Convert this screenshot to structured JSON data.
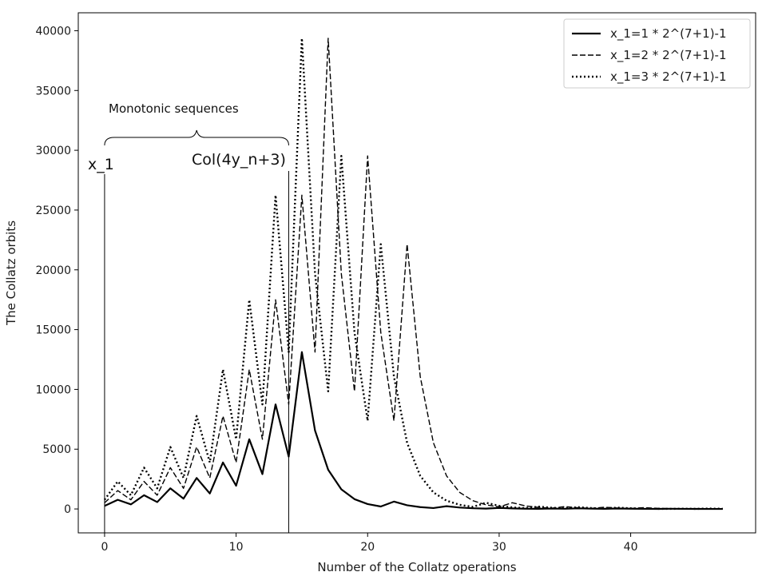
{
  "chart_data": {
    "type": "line",
    "title": "",
    "xlabel": "Number of the Collatz operations",
    "ylabel": "The Collatz orbits",
    "xlim": [
      -2,
      49.5
    ],
    "ylim": [
      -2000,
      41500
    ],
    "xticks": [
      0,
      10,
      20,
      30,
      40
    ],
    "yticks": [
      0,
      5000,
      10000,
      15000,
      20000,
      25000,
      30000,
      35000,
      40000
    ],
    "grid": false,
    "legend_position": "top-right",
    "series": [
      {
        "name": "x_1=1 * 2^(7+1)-1",
        "style": "solid",
        "color": "#000000",
        "x": [
          0,
          1,
          2,
          3,
          4,
          5,
          6,
          7,
          8,
          9,
          10,
          11,
          12,
          13,
          14,
          15,
          16,
          17,
          18,
          19,
          20,
          21,
          22,
          23,
          24,
          25,
          26,
          27,
          28,
          29,
          30,
          31,
          32,
          33,
          34,
          35,
          36,
          37,
          38,
          39,
          40,
          41,
          42,
          43,
          44,
          45,
          46,
          47
        ],
        "y": [
          255,
          766,
          383,
          1150,
          575,
          1726,
          863,
          2590,
          1295,
          3886,
          1943,
          5830,
          2915,
          8746,
          4373,
          13120,
          6560,
          3280,
          1640,
          820,
          410,
          205,
          616,
          308,
          154,
          77,
          232,
          116,
          58,
          29,
          88,
          44,
          22,
          11,
          34,
          17,
          52,
          26,
          13,
          40,
          20,
          10,
          5,
          16,
          8,
          4,
          2,
          1
        ]
      },
      {
        "name": "x_1=2 * 2^(7+1)-1",
        "style": "dashed",
        "color": "#000000",
        "x": [
          0,
          1,
          2,
          3,
          4,
          5,
          6,
          7,
          8,
          9,
          10,
          11,
          12,
          13,
          14,
          15,
          16,
          17,
          18,
          19,
          20,
          21,
          22,
          23,
          24,
          25,
          26,
          27,
          28,
          29,
          30,
          31,
          32,
          33,
          34,
          35,
          36,
          37,
          38,
          39,
          40,
          41,
          42,
          43,
          44,
          45,
          46,
          47
        ],
        "y": [
          511,
          1534,
          767,
          2302,
          1151,
          3454,
          1727,
          5182,
          2591,
          7774,
          3887,
          11662,
          5831,
          17494,
          8747,
          26242,
          13121,
          39364,
          19682,
          9841,
          29524,
          14762,
          7381,
          22144,
          11072,
          5536,
          2768,
          1384,
          692,
          346,
          173,
          520,
          260,
          130,
          65,
          196,
          98,
          49,
          148,
          74,
          37,
          112,
          56,
          28,
          14,
          7,
          22,
          11
        ]
      },
      {
        "name": "x_1=3 * 2^(7+1)-1",
        "style": "dotted",
        "color": "#000000",
        "x": [
          0,
          1,
          2,
          3,
          4,
          5,
          6,
          7,
          8,
          9,
          10,
          11,
          12,
          13,
          14,
          15,
          16,
          17,
          18,
          19,
          20,
          21,
          22,
          23,
          24,
          25,
          26,
          27,
          28,
          29,
          30,
          31,
          32,
          33,
          34,
          35,
          36,
          37,
          38,
          39,
          40,
          41,
          42,
          43,
          44,
          45,
          46,
          47
        ],
        "y": [
          767,
          2302,
          1151,
          3454,
          1727,
          5182,
          2591,
          7774,
          3887,
          11662,
          5831,
          17494,
          8747,
          26242,
          13121,
          39364,
          19682,
          9841,
          29524,
          14762,
          7381,
          22144,
          11072,
          5536,
          2768,
          1384,
          692,
          346,
          173,
          520,
          260,
          130,
          65,
          196,
          98,
          49,
          148,
          74,
          37,
          112,
          56,
          28,
          14,
          7,
          22,
          11,
          34,
          17
        ]
      }
    ],
    "annotations": {
      "bracket_label": "Monotonic sequences",
      "bracket_range": [
        0,
        14
      ],
      "start_label": "x_1",
      "start_x": 0,
      "end_label": "Col(4y_n+3)",
      "end_x": 14,
      "marker_line_top": 28000
    }
  }
}
